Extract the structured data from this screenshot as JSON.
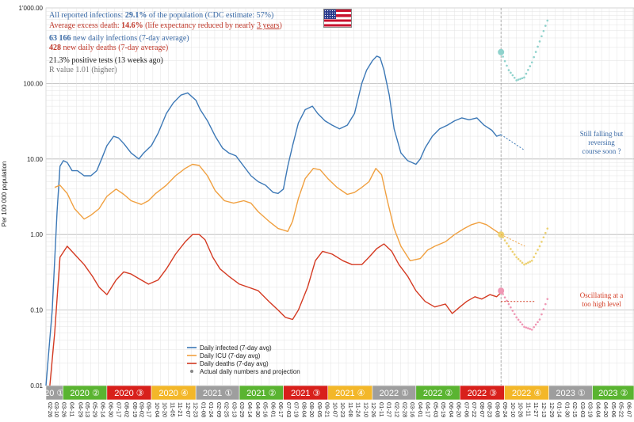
{
  "info": {
    "line1_pre": "All reported infections: ",
    "line1_val": "29.1%",
    "line1_post": " of the population (CDC estimate: 57%)",
    "line2_pre": "Average excess death: ",
    "line2_val": "14.6%",
    "line2_post": " (life expectancy reduced by nearly ",
    "line2_years": "3 years",
    "line2_end": ")",
    "line3_val": "63 166",
    "line3_post": " new daily infections (7-day average)",
    "line4_val": "428",
    "line4_post": " new daily deaths (7-day average)",
    "line5": "21.3% positive tests (13 weeks ago)",
    "line6": "R value 1.01 (higher)"
  },
  "annotations": {
    "blue_note": [
      "Still falling but",
      "reversing",
      "course soon ?"
    ],
    "red_note": [
      "Oscillating at a",
      "too high level"
    ]
  },
  "colors": {
    "infected": "#3c78b6",
    "icu": "#f0a040",
    "deaths": "#d43a22",
    "info_blue": "#3a6aa6",
    "info_red": "#c0392b",
    "info_gray": "#777777",
    "proj_blue": "#8fd2cc",
    "proj_yellow": "#ecd070",
    "proj_pink": "#ef97b4"
  },
  "chart_data": {
    "type": "line",
    "yscale": "log",
    "ylabel": "Per 100 000 population",
    "ylim": [
      0.01,
      1000
    ],
    "ytick_labels": [
      "1'000.00",
      "100.00",
      "10.00",
      "1.00",
      "0.10",
      "0.01"
    ],
    "xlim": [
      "2020-02-26",
      "2023-06-26"
    ],
    "grid": true,
    "legend_position": "bottom-center",
    "legend": [
      "Daily infected (7-day avg)",
      "Daily ICU (7-day avg)",
      "Daily deaths (7-day avg)",
      "Actual daily numbers and projection"
    ],
    "series": [
      {
        "name": "Daily infected (7-day avg)",
        "x": [
          "2020-02-26",
          "2020-03-10",
          "2020-03-20",
          "2020-03-26",
          "2020-04-02",
          "2020-04-10",
          "2020-04-20",
          "2020-05-01",
          "2020-05-15",
          "2020-05-29",
          "2020-06-10",
          "2020-06-20",
          "2020-07-01",
          "2020-07-15",
          "2020-07-25",
          "2020-08-05",
          "2020-08-20",
          "2020-09-05",
          "2020-09-15",
          "2020-10-01",
          "2020-10-15",
          "2020-11-01",
          "2020-11-15",
          "2020-12-01",
          "2020-12-15",
          "2021-01-01",
          "2021-01-10",
          "2021-01-25",
          "2021-02-10",
          "2021-02-25",
          "2021-03-10",
          "2021-03-25",
          "2021-04-10",
          "2021-04-25",
          "2021-05-10",
          "2021-05-25",
          "2021-06-10",
          "2021-06-20",
          "2021-07-01",
          "2021-07-10",
          "2021-07-20",
          "2021-08-01",
          "2021-08-15",
          "2021-08-30",
          "2021-09-10",
          "2021-09-25",
          "2021-10-10",
          "2021-10-25",
          "2021-11-10",
          "2021-11-25",
          "2021-12-10",
          "2021-12-20",
          "2022-01-01",
          "2022-01-10",
          "2022-01-17",
          "2022-01-25",
          "2022-02-05",
          "2022-02-15",
          "2022-03-01",
          "2022-03-15",
          "2022-04-01",
          "2022-04-10",
          "2022-04-20",
          "2022-05-05",
          "2022-05-20",
          "2022-06-05",
          "2022-06-20",
          "2022-07-05",
          "2022-07-20",
          "2022-08-05",
          "2022-08-20",
          "2022-09-05",
          "2022-09-15",
          "2022-09-24"
        ],
        "y": [
          0.01,
          0.1,
          2,
          8,
          9.5,
          9,
          7,
          7,
          6,
          6,
          7,
          10,
          15,
          20,
          19,
          16,
          12,
          10,
          12,
          15,
          22,
          40,
          55,
          70,
          75,
          60,
          45,
          32,
          20,
          14,
          12,
          11,
          8,
          6,
          5,
          4.5,
          3.6,
          3.5,
          4,
          8,
          15,
          30,
          45,
          50,
          40,
          32,
          28,
          25,
          28,
          40,
          100,
          150,
          200,
          230,
          220,
          150,
          70,
          25,
          12,
          9.5,
          8.5,
          10,
          14,
          20,
          25,
          28,
          32,
          35,
          33,
          35,
          28,
          24,
          20,
          21
        ]
      },
      {
        "name": "Daily ICU (7-day avg)",
        "x": [
          "2020-03-15",
          "2020-03-26",
          "2020-04-10",
          "2020-04-25",
          "2020-05-15",
          "2020-05-29",
          "2020-06-15",
          "2020-07-01",
          "2020-07-20",
          "2020-08-05",
          "2020-08-20",
          "2020-09-10",
          "2020-09-25",
          "2020-10-10",
          "2020-11-01",
          "2020-11-20",
          "2020-12-10",
          "2020-12-25",
          "2021-01-08",
          "2021-01-25",
          "2021-02-10",
          "2021-03-01",
          "2021-03-20",
          "2021-04-10",
          "2021-04-25",
          "2021-05-10",
          "2021-06-01",
          "2021-06-20",
          "2021-07-10",
          "2021-07-20",
          "2021-08-01",
          "2021-08-15",
          "2021-09-01",
          "2021-09-15",
          "2021-10-01",
          "2021-10-20",
          "2021-11-10",
          "2021-11-25",
          "2021-12-10",
          "2021-12-25",
          "2022-01-08",
          "2022-01-20",
          "2022-02-01",
          "2022-02-15",
          "2022-03-01",
          "2022-03-20",
          "2022-04-10",
          "2022-04-25",
          "2022-05-10",
          "2022-06-01",
          "2022-06-20",
          "2022-07-10",
          "2022-07-25",
          "2022-08-10",
          "2022-08-25",
          "2022-09-10",
          "2022-09-24"
        ],
        "y": [
          4.2,
          4.5,
          3.5,
          2.2,
          1.6,
          1.8,
          2.2,
          3.2,
          4,
          3.4,
          2.8,
          2.5,
          2.8,
          3.5,
          4.5,
          6,
          7.5,
          8.5,
          8.2,
          6,
          3.8,
          2.8,
          2.6,
          2.8,
          2.6,
          2,
          1.5,
          1.2,
          1.1,
          1.5,
          3,
          5.5,
          7.5,
          7.2,
          5.5,
          4.2,
          3.4,
          3.6,
          4.2,
          5,
          7.5,
          6.2,
          2.8,
          1.2,
          0.7,
          0.45,
          0.48,
          0.62,
          0.7,
          0.8,
          1,
          1.2,
          1.35,
          1.45,
          1.35,
          1.15,
          1.0
        ]
      },
      {
        "name": "Daily deaths (7-day avg)",
        "x": [
          "2020-03-05",
          "2020-03-15",
          "2020-03-26",
          "2020-04-10",
          "2020-04-25",
          "2020-05-15",
          "2020-06-01",
          "2020-06-15",
          "2020-07-01",
          "2020-07-20",
          "2020-08-05",
          "2020-08-20",
          "2020-09-10",
          "2020-09-25",
          "2020-10-15",
          "2020-11-01",
          "2020-11-20",
          "2020-12-10",
          "2020-12-25",
          "2021-01-08",
          "2021-01-20",
          "2021-02-05",
          "2021-02-20",
          "2021-03-10",
          "2021-04-01",
          "2021-04-20",
          "2021-05-10",
          "2021-06-01",
          "2021-06-20",
          "2021-07-05",
          "2021-07-20",
          "2021-08-01",
          "2021-08-20",
          "2021-09-05",
          "2021-09-20",
          "2021-10-10",
          "2021-11-01",
          "2021-11-20",
          "2021-12-10",
          "2021-12-25",
          "2022-01-10",
          "2022-01-25",
          "2022-02-10",
          "2022-02-25",
          "2022-03-15",
          "2022-04-01",
          "2022-04-20",
          "2022-05-10",
          "2022-06-01",
          "2022-06-15",
          "2022-07-01",
          "2022-07-15",
          "2022-08-01",
          "2022-08-15",
          "2022-09-01",
          "2022-09-15",
          "2022-09-24"
        ],
        "y": [
          0.01,
          0.05,
          0.5,
          0.7,
          0.55,
          0.4,
          0.28,
          0.2,
          0.16,
          0.25,
          0.32,
          0.3,
          0.25,
          0.22,
          0.25,
          0.35,
          0.55,
          0.8,
          1.0,
          1.0,
          0.85,
          0.5,
          0.35,
          0.28,
          0.22,
          0.2,
          0.18,
          0.13,
          0.1,
          0.08,
          0.075,
          0.1,
          0.2,
          0.45,
          0.6,
          0.55,
          0.45,
          0.4,
          0.4,
          0.5,
          0.65,
          0.75,
          0.6,
          0.4,
          0.28,
          0.18,
          0.13,
          0.11,
          0.12,
          0.09,
          0.11,
          0.13,
          0.15,
          0.14,
          0.16,
          0.15,
          0.17
        ]
      },
      {
        "name": "Projection infected",
        "x": [
          "2022-09-24",
          "2022-10-10",
          "2022-10-26",
          "2022-11-11",
          "2022-11-27",
          "2022-12-13",
          "2022-12-29"
        ],
        "y": [
          260,
          150,
          110,
          120,
          190,
          360,
          680
        ]
      },
      {
        "name": "Projection ICU",
        "x": [
          "2022-09-24",
          "2022-10-10",
          "2022-10-26",
          "2022-11-11",
          "2022-11-27",
          "2022-12-13",
          "2022-12-29"
        ],
        "y": [
          1.0,
          0.7,
          0.5,
          0.4,
          0.45,
          0.7,
          1.2
        ]
      },
      {
        "name": "Projection deaths",
        "x": [
          "2022-09-24",
          "2022-10-10",
          "2022-10-26",
          "2022-11-11",
          "2022-11-27",
          "2022-12-13",
          "2022-12-29"
        ],
        "y": [
          0.18,
          0.12,
          0.08,
          0.06,
          0.055,
          0.075,
          0.14
        ]
      }
    ],
    "quarters": [
      {
        "label": "20 ①",
        "color": "#9e9e9e",
        "start": "2020-02-26",
        "end": "2020-04-01"
      },
      {
        "label": "2020 ②",
        "color": "#5ab431",
        "start": "2020-04-01",
        "end": "2020-07-01"
      },
      {
        "label": "2020 ③",
        "color": "#d8201b",
        "start": "2020-07-01",
        "end": "2020-10-01"
      },
      {
        "label": "2020 ④",
        "color": "#f3b729",
        "start": "2020-10-01",
        "end": "2021-01-01"
      },
      {
        "label": "2021 ①",
        "color": "#9e9e9e",
        "start": "2021-01-01",
        "end": "2021-04-01"
      },
      {
        "label": "2021 ②",
        "color": "#5ab431",
        "start": "2021-04-01",
        "end": "2021-07-01"
      },
      {
        "label": "2021 ③",
        "color": "#d8201b",
        "start": "2021-07-01",
        "end": "2021-10-01"
      },
      {
        "label": "2021 ④",
        "color": "#f3b729",
        "start": "2021-10-01",
        "end": "2022-01-01"
      },
      {
        "label": "2022 ①",
        "color": "#9e9e9e",
        "start": "2022-01-01",
        "end": "2022-04-01"
      },
      {
        "label": "2022 ②",
        "color": "#5ab431",
        "start": "2022-04-01",
        "end": "2022-07-01"
      },
      {
        "label": "2022 ③",
        "color": "#d8201b",
        "start": "2022-07-01",
        "end": "2022-10-01"
      },
      {
        "label": "2022 ④",
        "color": "#f3b729",
        "start": "2022-10-01",
        "end": "2023-01-01"
      },
      {
        "label": "2023 ①",
        "color": "#9e9e9e",
        "start": "2023-01-01",
        "end": "2023-04-01"
      },
      {
        "label": "2023 ②",
        "color": "#5ab431",
        "start": "2023-04-01",
        "end": "2023-06-26"
      }
    ],
    "x_tick_labels": [
      "02-26",
      "03-10",
      "03-26",
      "04-11",
      "04-29",
      "05-13",
      "05-29",
      "06-14",
      "06-30",
      "07-17",
      "08-02",
      "08-19",
      "09-02",
      "09-17",
      "10-04",
      "10-20",
      "11-05",
      "11-21",
      "12-07",
      "12-23",
      "01-08",
      "01-24",
      "02-09",
      "02-25",
      "03-13",
      "03-29",
      "04-14",
      "04-30",
      "05-16",
      "06-01",
      "06-17",
      "07-03",
      "07-19",
      "08-04",
      "08-20",
      "09-05",
      "09-21",
      "10-07",
      "10-23",
      "11-08",
      "11-24",
      "12-10",
      "12-26",
      "01-11",
      "01-27",
      "02-12",
      "02-28",
      "03-16",
      "04-01",
      "04-17",
      "05-03",
      "05-19",
      "06-04",
      "06-20",
      "07-06",
      "07-22",
      "08-07",
      "08-23",
      "09-08",
      "09-24",
      "10-10",
      "10-26",
      "11-11",
      "11-27",
      "12-13",
      "12-29",
      "01-14",
      "01-30",
      "02-15",
      "03-03",
      "03-19",
      "04-04",
      "04-20",
      "05-06",
      "05-22",
      "06-07",
      "06-23"
    ]
  }
}
